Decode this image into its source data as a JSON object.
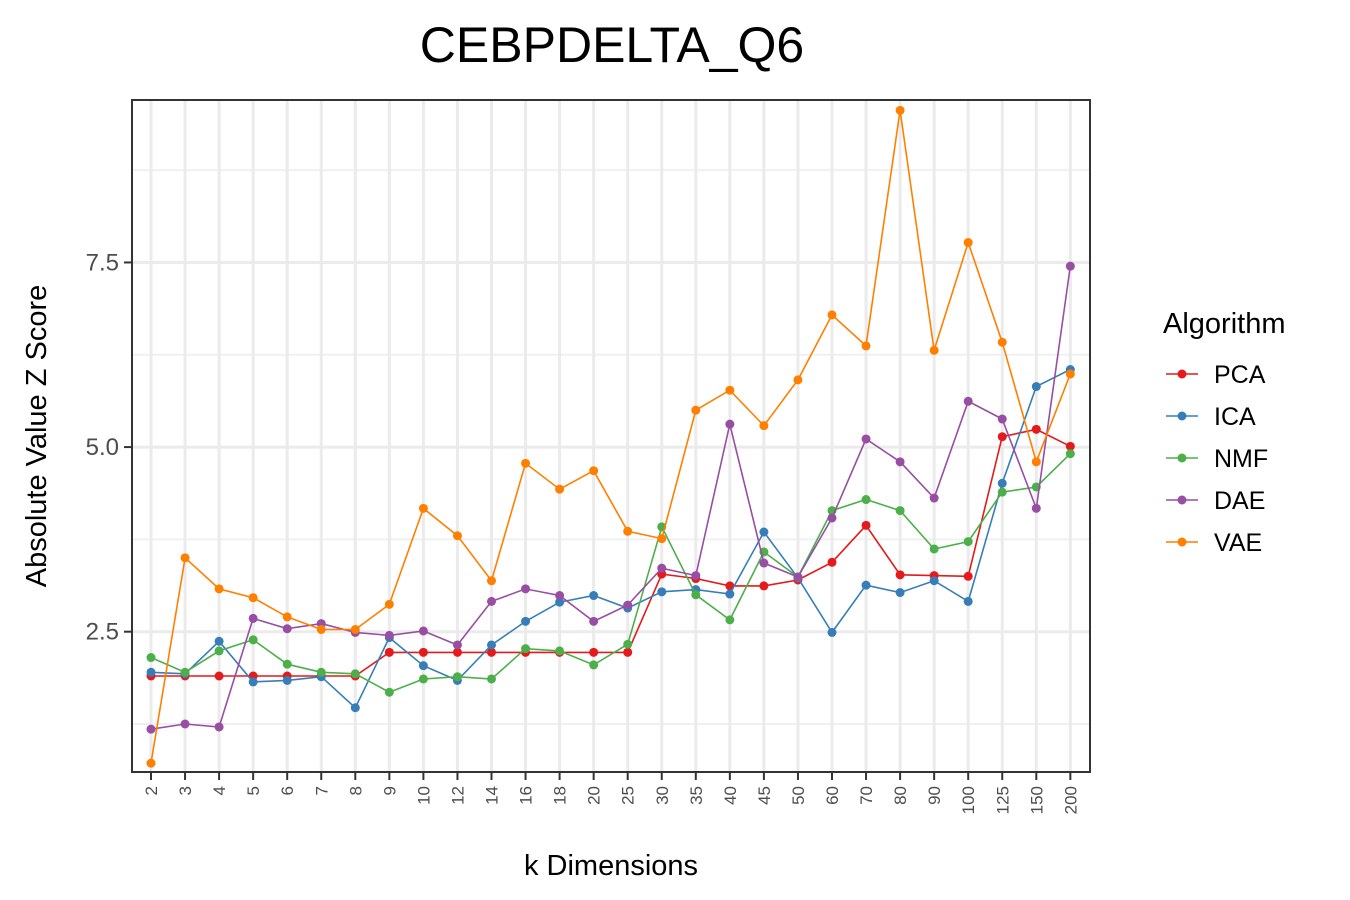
{
  "chart_data": {
    "type": "line",
    "title": "CEBPDELTA_Q6",
    "xlabel": "k Dimensions",
    "ylabel": "Absolute Value Z Score",
    "categories": [
      "2",
      "3",
      "4",
      "5",
      "6",
      "7",
      "8",
      "9",
      "10",
      "12",
      "14",
      "16",
      "18",
      "20",
      "25",
      "30",
      "35",
      "40",
      "45",
      "50",
      "60",
      "70",
      "80",
      "90",
      "100",
      "125",
      "150",
      "200"
    ],
    "ylim": [
      0.6,
      9.7
    ],
    "yticks": [
      2.5,
      5.0,
      7.5
    ],
    "ytick_labels": [
      "2.5",
      "5.0",
      "7.5"
    ],
    "grid": true,
    "legend": {
      "title": "Algorithm",
      "position": "right"
    },
    "series": [
      {
        "name": "PCA",
        "color": "#e41a1c",
        "values": [
          1.9,
          1.9,
          1.9,
          1.9,
          1.9,
          1.9,
          1.9,
          2.22,
          2.22,
          2.22,
          2.22,
          2.22,
          2.22,
          2.22,
          2.22,
          3.28,
          3.22,
          3.12,
          3.12,
          3.2,
          3.44,
          3.94,
          3.27,
          3.26,
          3.25,
          5.14,
          5.24,
          5.01
        ]
      },
      {
        "name": "ICA",
        "color": "#377eb8",
        "values": [
          1.95,
          1.93,
          2.37,
          1.82,
          1.84,
          1.89,
          1.47,
          2.42,
          2.04,
          1.84,
          2.32,
          2.64,
          2.9,
          2.99,
          2.82,
          3.04,
          3.07,
          3.01,
          3.85,
          3.23,
          2.49,
          3.13,
          3.03,
          3.19,
          2.91,
          4.51,
          5.82,
          6.05
        ]
      },
      {
        "name": "NMF",
        "color": "#4daf4a",
        "values": [
          2.15,
          1.95,
          2.24,
          2.39,
          2.06,
          1.95,
          1.93,
          1.68,
          1.86,
          1.89,
          1.86,
          2.27,
          2.24,
          2.05,
          2.33,
          3.92,
          3.0,
          2.66,
          3.58,
          3.24,
          4.14,
          4.29,
          4.14,
          3.62,
          3.72,
          4.39,
          4.46,
          4.91
        ]
      },
      {
        "name": "DAE",
        "color": "#984ea3",
        "values": [
          1.18,
          1.25,
          1.21,
          2.68,
          2.54,
          2.61,
          2.49,
          2.45,
          2.51,
          2.32,
          2.91,
          3.08,
          2.99,
          2.64,
          2.86,
          3.36,
          3.26,
          5.31,
          3.43,
          3.24,
          4.04,
          5.11,
          4.8,
          4.31,
          5.62,
          5.38,
          4.17,
          7.45
        ]
      },
      {
        "name": "VAE",
        "color": "#ff7f00",
        "values": [
          0.72,
          3.5,
          3.08,
          2.96,
          2.7,
          2.53,
          2.53,
          2.87,
          4.17,
          3.8,
          3.19,
          4.78,
          4.43,
          4.68,
          3.86,
          3.76,
          5.5,
          5.77,
          5.29,
          5.91,
          6.79,
          6.37,
          9.56,
          6.31,
          7.77,
          6.42,
          4.8,
          5.99
        ]
      }
    ]
  }
}
